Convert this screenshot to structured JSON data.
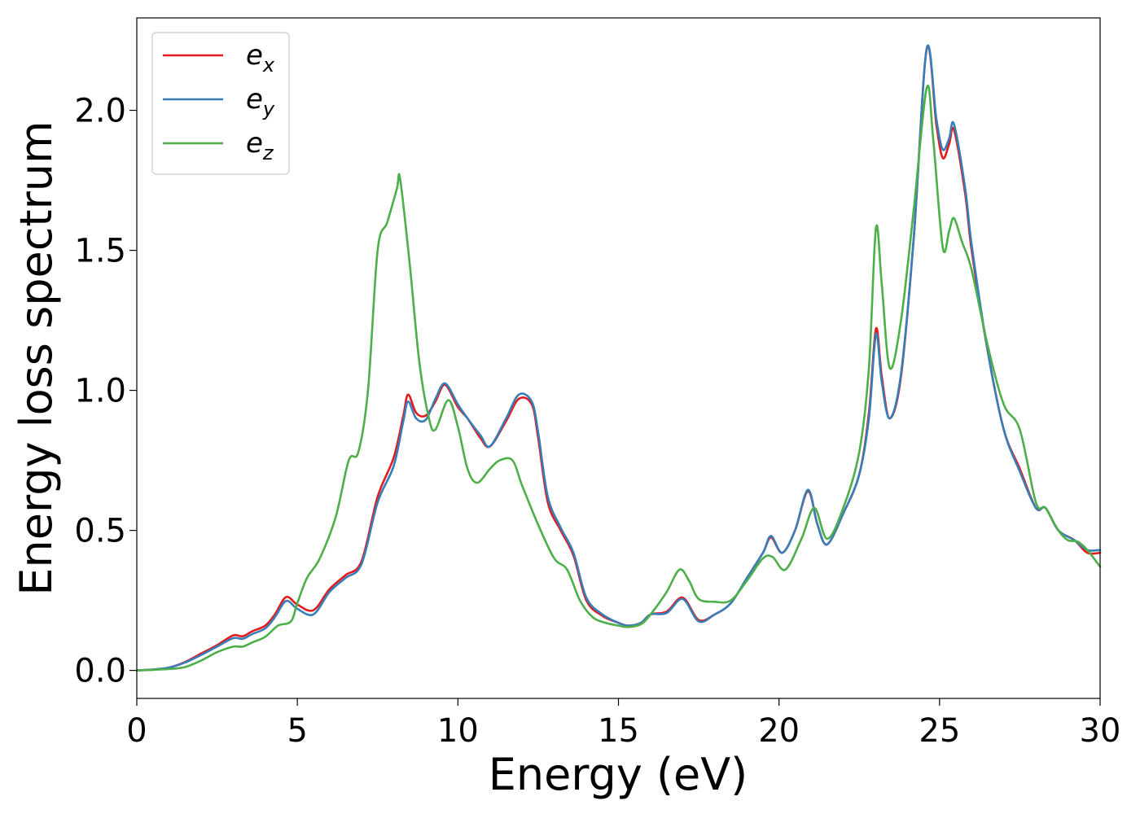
{
  "chart_data": {
    "type": "line",
    "title": "",
    "xlabel": "Energy (eV)",
    "ylabel": "Energy loss spectrum",
    "xlim": [
      0,
      30
    ],
    "ylim": [
      -0.1,
      2.33
    ],
    "xticks": [
      0,
      5,
      10,
      15,
      20,
      25,
      30
    ],
    "yticks": [
      0.0,
      0.5,
      1.0,
      1.5,
      2.0
    ],
    "xtick_labels": [
      "0",
      "5",
      "10",
      "15",
      "20",
      "25",
      "30"
    ],
    "ytick_labels": [
      "0.0",
      "0.5",
      "1.0",
      "1.5",
      "2.0"
    ],
    "grid": false,
    "legend_position": "top-left",
    "series": [
      {
        "name": "e_x",
        "legend_base": "e",
        "legend_sub": "x",
        "color": "#e41a1c",
        "points": [
          [
            0,
            0
          ],
          [
            0.5,
            0.003
          ],
          [
            1,
            0.01
          ],
          [
            1.5,
            0.03
          ],
          [
            2,
            0.06
          ],
          [
            2.5,
            0.09
          ],
          [
            3,
            0.125
          ],
          [
            3.3,
            0.122
          ],
          [
            3.6,
            0.14
          ],
          [
            4,
            0.16
          ],
          [
            4.3,
            0.2
          ],
          [
            4.65,
            0.262
          ],
          [
            5,
            0.235
          ],
          [
            5.5,
            0.215
          ],
          [
            6,
            0.29
          ],
          [
            6.5,
            0.34
          ],
          [
            7,
            0.39
          ],
          [
            7.5,
            0.62
          ],
          [
            8,
            0.76
          ],
          [
            8.3,
            0.91
          ],
          [
            8.45,
            0.985
          ],
          [
            8.7,
            0.92
          ],
          [
            9,
            0.91
          ],
          [
            9.3,
            0.96
          ],
          [
            9.6,
            1.02
          ],
          [
            10,
            0.94
          ],
          [
            10.3,
            0.9
          ],
          [
            10.7,
            0.83
          ],
          [
            11,
            0.8
          ],
          [
            11.5,
            0.89
          ],
          [
            11.9,
            0.97
          ],
          [
            12.3,
            0.95
          ],
          [
            12.5,
            0.83
          ],
          [
            12.8,
            0.6
          ],
          [
            13.2,
            0.5
          ],
          [
            13.6,
            0.41
          ],
          [
            14,
            0.25
          ],
          [
            14.5,
            0.195
          ],
          [
            15,
            0.17
          ],
          [
            15.3,
            0.16
          ],
          [
            15.7,
            0.17
          ],
          [
            16,
            0.2
          ],
          [
            16.5,
            0.21
          ],
          [
            17,
            0.26
          ],
          [
            17.5,
            0.18
          ],
          [
            18,
            0.2
          ],
          [
            18.5,
            0.24
          ],
          [
            19,
            0.33
          ],
          [
            19.5,
            0.42
          ],
          [
            19.75,
            0.475
          ],
          [
            20.1,
            0.42
          ],
          [
            20.5,
            0.5
          ],
          [
            20.9,
            0.64
          ],
          [
            21.2,
            0.52
          ],
          [
            21.5,
            0.45
          ],
          [
            22,
            0.56
          ],
          [
            22.5,
            0.7
          ],
          [
            22.8,
            0.92
          ],
          [
            23.02,
            1.22
          ],
          [
            23.2,
            1.05
          ],
          [
            23.45,
            0.9
          ],
          [
            23.8,
            1.05
          ],
          [
            24.2,
            1.55
          ],
          [
            24.6,
            2.22
          ],
          [
            24.9,
            1.95
          ],
          [
            25.1,
            1.83
          ],
          [
            25.3,
            1.88
          ],
          [
            25.45,
            1.93
          ],
          [
            25.8,
            1.7
          ],
          [
            26,
            1.5
          ],
          [
            26.5,
            1.14
          ],
          [
            27,
            0.86
          ],
          [
            27.5,
            0.72
          ],
          [
            28,
            0.58
          ],
          [
            28.3,
            0.58
          ],
          [
            28.7,
            0.5
          ],
          [
            29.2,
            0.465
          ],
          [
            29.6,
            0.42
          ],
          [
            30,
            0.42
          ]
        ]
      },
      {
        "name": "e_y",
        "legend_base": "e",
        "legend_sub": "y",
        "color": "#377eb8",
        "points": [
          [
            0,
            0
          ],
          [
            0.5,
            0.003
          ],
          [
            1,
            0.01
          ],
          [
            1.5,
            0.028
          ],
          [
            2,
            0.055
          ],
          [
            2.5,
            0.085
          ],
          [
            3,
            0.115
          ],
          [
            3.3,
            0.113
          ],
          [
            3.6,
            0.13
          ],
          [
            4,
            0.15
          ],
          [
            4.3,
            0.19
          ],
          [
            4.65,
            0.248
          ],
          [
            5,
            0.22
          ],
          [
            5.5,
            0.2
          ],
          [
            6,
            0.28
          ],
          [
            6.5,
            0.33
          ],
          [
            7,
            0.38
          ],
          [
            7.5,
            0.6
          ],
          [
            8,
            0.73
          ],
          [
            8.3,
            0.89
          ],
          [
            8.45,
            0.96
          ],
          [
            8.7,
            0.9
          ],
          [
            9,
            0.895
          ],
          [
            9.3,
            0.97
          ],
          [
            9.6,
            1.025
          ],
          [
            10,
            0.95
          ],
          [
            10.3,
            0.9
          ],
          [
            10.7,
            0.84
          ],
          [
            11,
            0.8
          ],
          [
            11.5,
            0.9
          ],
          [
            11.9,
            0.985
          ],
          [
            12.3,
            0.96
          ],
          [
            12.5,
            0.85
          ],
          [
            12.8,
            0.62
          ],
          [
            13.2,
            0.51
          ],
          [
            13.6,
            0.42
          ],
          [
            14,
            0.26
          ],
          [
            14.5,
            0.2
          ],
          [
            15,
            0.17
          ],
          [
            15.3,
            0.16
          ],
          [
            15.7,
            0.17
          ],
          [
            16,
            0.2
          ],
          [
            16.5,
            0.205
          ],
          [
            17,
            0.255
          ],
          [
            17.5,
            0.175
          ],
          [
            18,
            0.2
          ],
          [
            18.5,
            0.24
          ],
          [
            19,
            0.33
          ],
          [
            19.5,
            0.42
          ],
          [
            19.75,
            0.48
          ],
          [
            20.1,
            0.42
          ],
          [
            20.5,
            0.5
          ],
          [
            20.9,
            0.645
          ],
          [
            21.2,
            0.52
          ],
          [
            21.5,
            0.45
          ],
          [
            22,
            0.56
          ],
          [
            22.5,
            0.7
          ],
          [
            22.8,
            0.9
          ],
          [
            23.02,
            1.2
          ],
          [
            23.2,
            1.03
          ],
          [
            23.45,
            0.9
          ],
          [
            23.8,
            1.06
          ],
          [
            24.2,
            1.55
          ],
          [
            24.6,
            2.22
          ],
          [
            24.9,
            1.97
          ],
          [
            25.1,
            1.86
          ],
          [
            25.3,
            1.9
          ],
          [
            25.45,
            1.95
          ],
          [
            25.8,
            1.72
          ],
          [
            26,
            1.52
          ],
          [
            26.5,
            1.14
          ],
          [
            27,
            0.86
          ],
          [
            27.5,
            0.71
          ],
          [
            28,
            0.58
          ],
          [
            28.3,
            0.58
          ],
          [
            28.7,
            0.5
          ],
          [
            29.2,
            0.465
          ],
          [
            29.6,
            0.43
          ],
          [
            30,
            0.43
          ]
        ]
      },
      {
        "name": "e_z",
        "legend_base": "e",
        "legend_sub": "z",
        "color": "#4daf4a",
        "points": [
          [
            0,
            0
          ],
          [
            0.5,
            0.002
          ],
          [
            1,
            0.005
          ],
          [
            1.5,
            0.012
          ],
          [
            2,
            0.035
          ],
          [
            2.5,
            0.065
          ],
          [
            3,
            0.085
          ],
          [
            3.3,
            0.085
          ],
          [
            3.6,
            0.1
          ],
          [
            4,
            0.12
          ],
          [
            4.4,
            0.16
          ],
          [
            4.8,
            0.175
          ],
          [
            5,
            0.24
          ],
          [
            5.3,
            0.33
          ],
          [
            5.7,
            0.4
          ],
          [
            6.2,
            0.55
          ],
          [
            6.6,
            0.75
          ],
          [
            6.9,
            0.78
          ],
          [
            7.2,
            1.0
          ],
          [
            7.5,
            1.5
          ],
          [
            7.8,
            1.6
          ],
          [
            8.1,
            1.72
          ],
          [
            8.2,
            1.755
          ],
          [
            8.5,
            1.45
          ],
          [
            8.8,
            1.1
          ],
          [
            9.1,
            0.9
          ],
          [
            9.3,
            0.86
          ],
          [
            9.7,
            0.965
          ],
          [
            10,
            0.87
          ],
          [
            10.3,
            0.72
          ],
          [
            10.6,
            0.67
          ],
          [
            11,
            0.72
          ],
          [
            11.3,
            0.75
          ],
          [
            11.7,
            0.75
          ],
          [
            12,
            0.66
          ],
          [
            12.5,
            0.52
          ],
          [
            13,
            0.4
          ],
          [
            13.4,
            0.36
          ],
          [
            13.8,
            0.25
          ],
          [
            14.2,
            0.19
          ],
          [
            14.6,
            0.17
          ],
          [
            15,
            0.16
          ],
          [
            15.3,
            0.155
          ],
          [
            15.7,
            0.165
          ],
          [
            16,
            0.2
          ],
          [
            16.5,
            0.28
          ],
          [
            16.9,
            0.36
          ],
          [
            17.2,
            0.32
          ],
          [
            17.5,
            0.255
          ],
          [
            18,
            0.245
          ],
          [
            18.5,
            0.25
          ],
          [
            19,
            0.32
          ],
          [
            19.5,
            0.4
          ],
          [
            19.8,
            0.405
          ],
          [
            20.2,
            0.36
          ],
          [
            20.7,
            0.47
          ],
          [
            21.1,
            0.58
          ],
          [
            21.5,
            0.47
          ],
          [
            22,
            0.58
          ],
          [
            22.5,
            0.78
          ],
          [
            22.8,
            1.08
          ],
          [
            23.02,
            1.58
          ],
          [
            23.2,
            1.38
          ],
          [
            23.45,
            1.08
          ],
          [
            23.8,
            1.25
          ],
          [
            24.2,
            1.65
          ],
          [
            24.6,
            2.08
          ],
          [
            24.8,
            1.9
          ],
          [
            25.1,
            1.51
          ],
          [
            25.3,
            1.57
          ],
          [
            25.45,
            1.615
          ],
          [
            25.7,
            1.53
          ],
          [
            26,
            1.43
          ],
          [
            26.5,
            1.16
          ],
          [
            27,
            0.95
          ],
          [
            27.5,
            0.86
          ],
          [
            28,
            0.6
          ],
          [
            28.3,
            0.58
          ],
          [
            28.7,
            0.5
          ],
          [
            29,
            0.465
          ],
          [
            29.3,
            0.46
          ],
          [
            29.6,
            0.43
          ],
          [
            30,
            0.37
          ]
        ]
      }
    ]
  }
}
